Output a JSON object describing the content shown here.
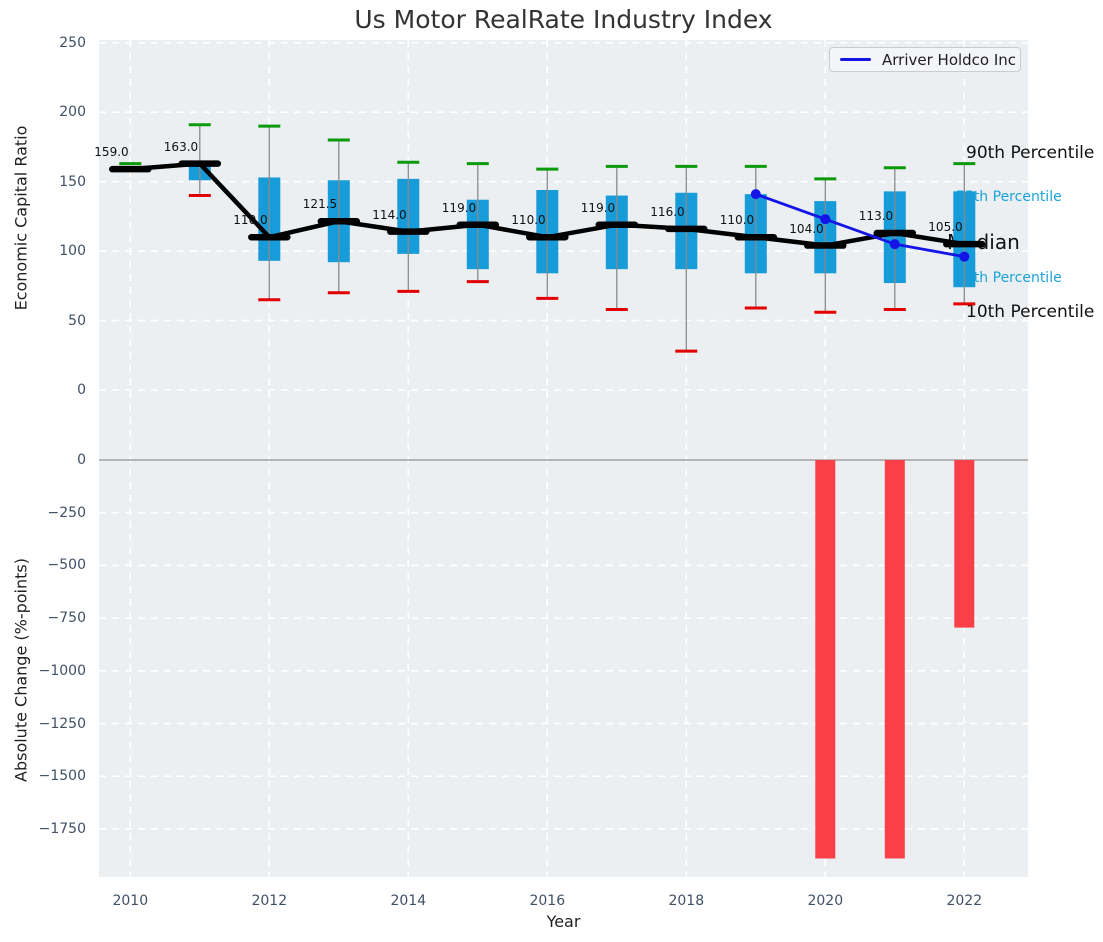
{
  "title": "Us Motor RealRate Industry Index",
  "legend": {
    "label": "Arriver Holdco Inc"
  },
  "axes": {
    "xlabel": "Year",
    "xticks": [
      2010,
      2012,
      2014,
      2016,
      2018,
      2020,
      2022
    ],
    "top": {
      "ylabel": "Economic Capital Ratio",
      "yticks": [
        250,
        200,
        150,
        100,
        50,
        0
      ]
    },
    "bottom": {
      "ylabel": "Absolute Change (%-points)",
      "yticks": [
        0,
        -250,
        -500,
        -750,
        -1000,
        -1250,
        -1500,
        -1750
      ]
    }
  },
  "percentile_labels": {
    "p90": "90th Percentile",
    "p75": "75th Percentile",
    "median": "Median",
    "p25": "25th Percentile",
    "p10": "10th Percentile"
  },
  "colors": {
    "plot_bg": "#eceff1",
    "grid": "#ffffff",
    "box_fill": "#189cd9",
    "whisker": "#8a8a8a",
    "cap_high": "#0a9a0a",
    "cap_low": "#e30000",
    "median_line": "#000000",
    "company_line": "#1414e6",
    "bar_negative": "#f94049",
    "zero_line": "#b5b5b5",
    "tick_text": "#405165",
    "percentile_text_accent": "#1ba3d9"
  },
  "chart_data": [
    {
      "type": "box",
      "title": "Us Motor RealRate Industry Index",
      "xlabel": "Year",
      "ylabel": "Economic Capital Ratio",
      "ylim": [
        -40,
        252
      ],
      "grid": true,
      "legend_position": "upper right",
      "boxes": [
        {
          "year": 2010,
          "p10": null,
          "p25": null,
          "median": 159.0,
          "p75": null,
          "p90": 163
        },
        {
          "year": 2011,
          "p10": 140,
          "p25": 151,
          "median": 163.0,
          "p75": 163,
          "p90": 191
        },
        {
          "year": 2012,
          "p10": 65,
          "p25": 93,
          "median": 110.0,
          "p75": 153,
          "p90": 190
        },
        {
          "year": 2013,
          "p10": 70,
          "p25": 92,
          "median": 121.5,
          "p75": 151,
          "p90": 180
        },
        {
          "year": 2014,
          "p10": 71,
          "p25": 98,
          "median": 114.0,
          "p75": 152,
          "p90": 164
        },
        {
          "year": 2015,
          "p10": 78,
          "p25": 87,
          "median": 119.0,
          "p75": 137,
          "p90": 163
        },
        {
          "year": 2016,
          "p10": 66,
          "p25": 84,
          "median": 110.0,
          "p75": 144,
          "p90": 159
        },
        {
          "year": 2017,
          "p10": 58,
          "p25": 87,
          "median": 119.0,
          "p75": 140,
          "p90": 161
        },
        {
          "year": 2018,
          "p10": 28,
          "p25": 87,
          "median": 116.0,
          "p75": 142,
          "p90": 161
        },
        {
          "year": 2019,
          "p10": 59,
          "p25": 84,
          "median": 110.0,
          "p75": 141,
          "p90": 161
        },
        {
          "year": 2020,
          "p10": 56,
          "p25": 84,
          "median": 104.0,
          "p75": 136,
          "p90": 152
        },
        {
          "year": 2021,
          "p10": 58,
          "p25": 77,
          "median": 113.0,
          "p75": 143,
          "p90": 160
        },
        {
          "year": 2022,
          "p10": 62,
          "p25": 74,
          "median": 105.0,
          "p75": 143,
          "p90": 163
        }
      ],
      "series": [
        {
          "name": "Arriver Holdco Inc",
          "x": [
            2019,
            2020,
            2021,
            2022
          ],
          "values": [
            141,
            123,
            105,
            96
          ]
        }
      ]
    },
    {
      "type": "bar",
      "xlabel": "Year",
      "ylabel": "Absolute Change (%-points)",
      "ylim": [
        -1980,
        60
      ],
      "categories": [
        2020,
        2021,
        2022
      ],
      "values": [
        -1890,
        -1890,
        -795
      ]
    }
  ]
}
